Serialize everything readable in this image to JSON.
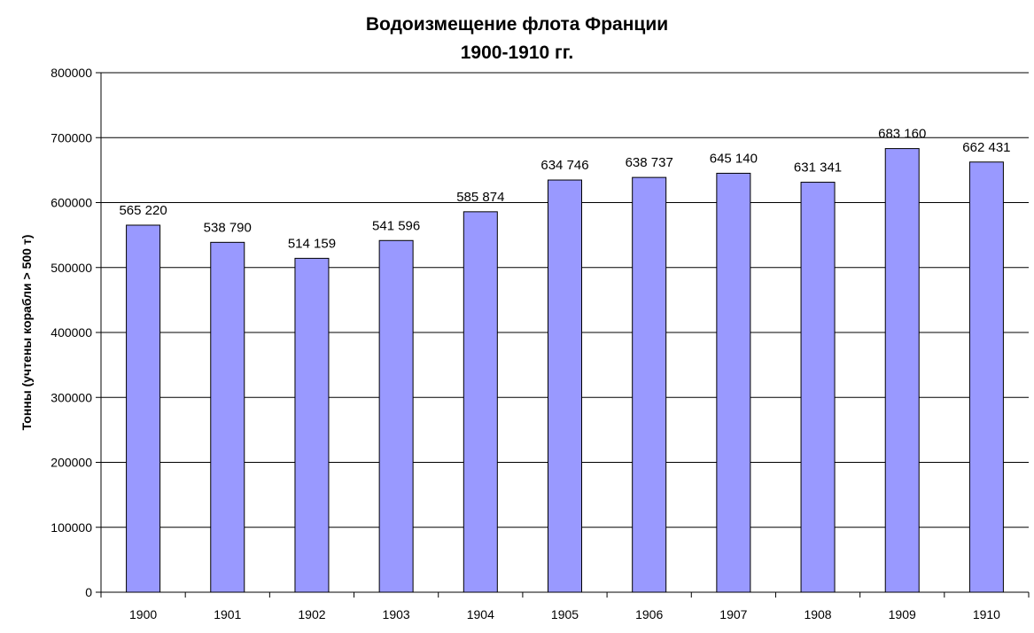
{
  "chart_data": {
    "type": "bar",
    "title_line1": "Водоизмещение флота Франции",
    "title_line2": "1900-1910 гг.",
    "xlabel": "",
    "ylabel": "Тонны (учтены корабли > 500 т)",
    "categories": [
      "1900",
      "1901",
      "1902",
      "1903",
      "1904",
      "1905",
      "1906",
      "1907",
      "1908",
      "1909",
      "1910"
    ],
    "values": [
      565220,
      538790,
      514159,
      541596,
      585874,
      634746,
      638737,
      645140,
      631341,
      683160,
      662431
    ],
    "value_labels": [
      "565 220",
      "538 790",
      "514 159",
      "541 596",
      "585 874",
      "634 746",
      "638 737",
      "645 140",
      "631 341",
      "683 160",
      "662 431"
    ],
    "ylim": [
      0,
      800000
    ],
    "yticks": [
      "0",
      "100000",
      "200000",
      "300000",
      "400000",
      "500000",
      "600000",
      "700000",
      "800000"
    ],
    "grid": true,
    "legend": "none",
    "colors": {
      "bar_fill": "#9999ff",
      "bar_stroke": "#000000",
      "grid": "#000000"
    }
  }
}
